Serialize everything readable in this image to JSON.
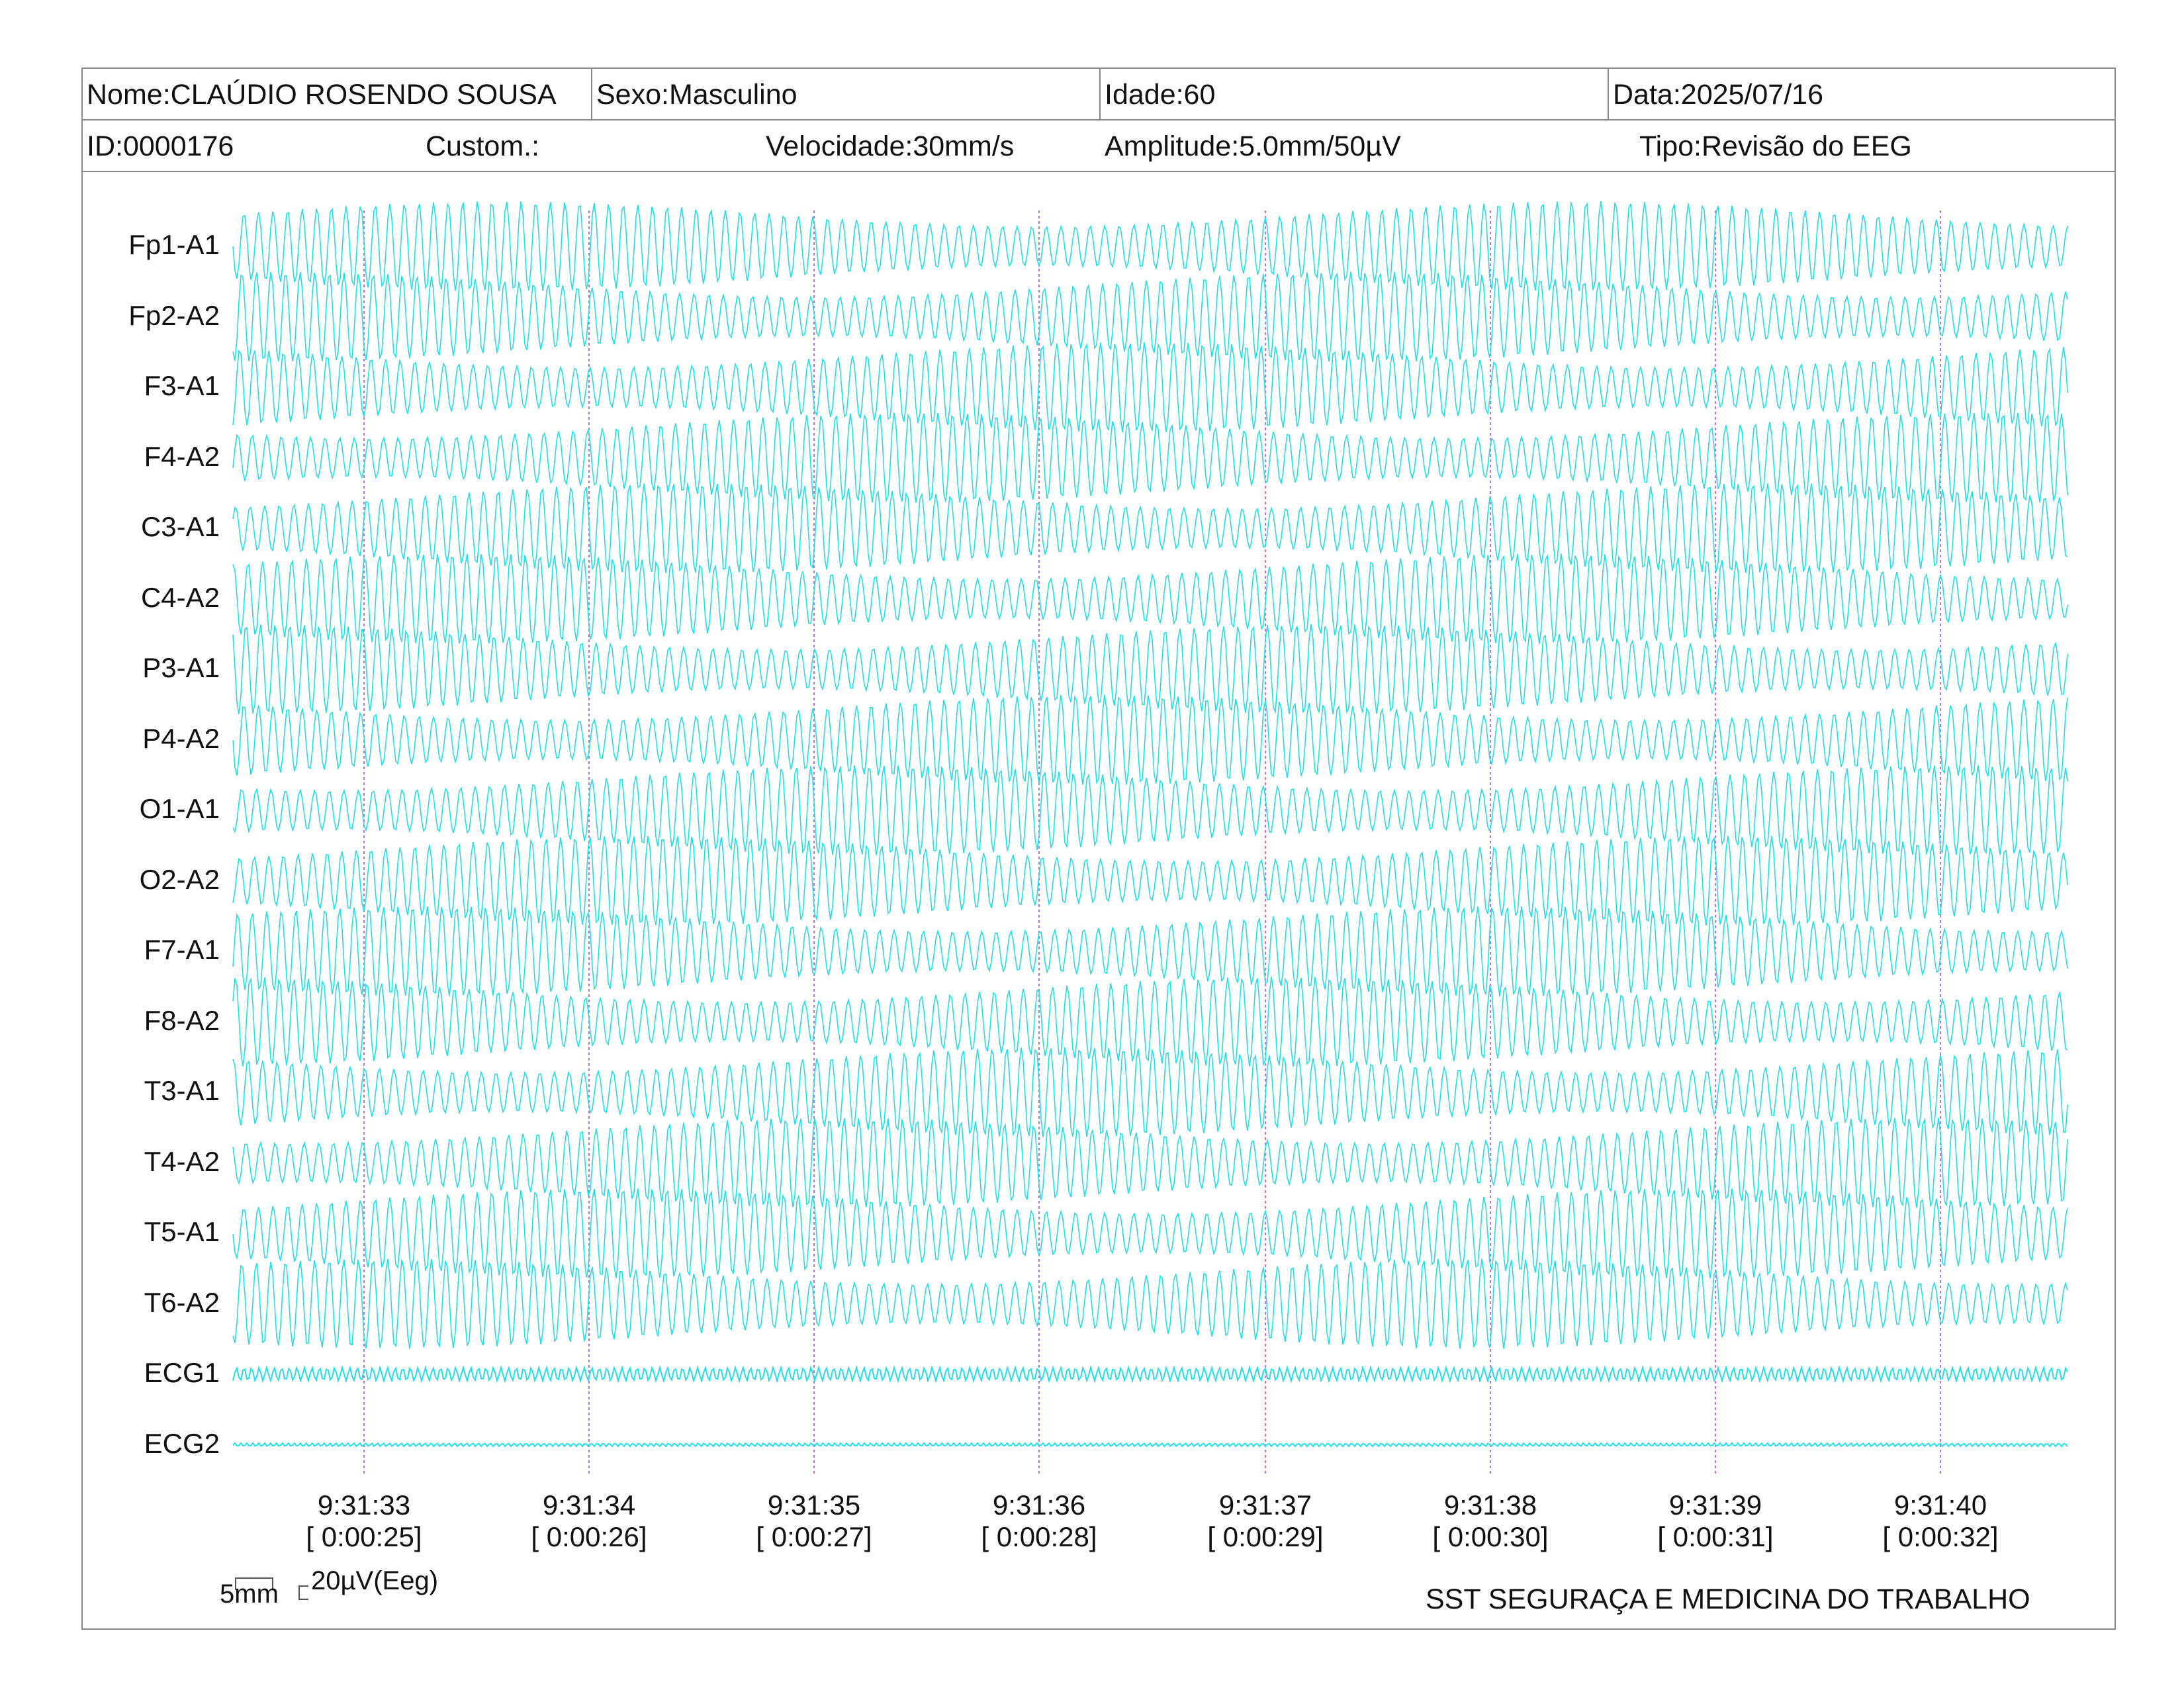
{
  "header": {
    "nome": "Nome:CLAÚDIO ROSENDO SOUSA",
    "sexo": "Sexo:Masculino",
    "idade": "Idade:60",
    "data": "Data:2025/07/16",
    "id": "ID:0000176",
    "custom": "Custom.:",
    "velocidade": "Velocidade:30mm/s",
    "amplitude": "Amplitude:5.0mm/50µV",
    "tipo": "Tipo:Revisão do EEG"
  },
  "channels": [
    "Fp1-A1",
    "Fp2-A2",
    "F3-A1",
    "F4-A2",
    "C3-A1",
    "C4-A2",
    "P3-A1",
    "P4-A2",
    "O1-A1",
    "O2-A2",
    "F7-A1",
    "F8-A2",
    "T3-A1",
    "T4-A2",
    "T5-A1",
    "T6-A2",
    "ECG1",
    "ECG2"
  ],
  "time_marks": [
    {
      "clock": "9:31:33",
      "elapsed": "[ 0:00:25]"
    },
    {
      "clock": "9:31:34",
      "elapsed": "[ 0:00:26]"
    },
    {
      "clock": "9:31:35",
      "elapsed": "[ 0:00:27]"
    },
    {
      "clock": "9:31:36",
      "elapsed": "[ 0:00:28]"
    },
    {
      "clock": "9:31:37",
      "elapsed": "[ 0:00:29]"
    },
    {
      "clock": "9:31:38",
      "elapsed": "[ 0:00:30]"
    },
    {
      "clock": "9:31:39",
      "elapsed": "[ 0:00:31]"
    },
    {
      "clock": "9:31:40",
      "elapsed": "[ 0:00:32]"
    }
  ],
  "calibration": {
    "time_label": "5mm",
    "amp_label": "20µV(Eeg)"
  },
  "footer": {
    "clinic": "SST SEGURAÇA E MEDICINA DO TRABALHO"
  },
  "colors": {
    "trace": "#22e0e8",
    "marker": "#c070e0",
    "border": "#888888"
  }
}
